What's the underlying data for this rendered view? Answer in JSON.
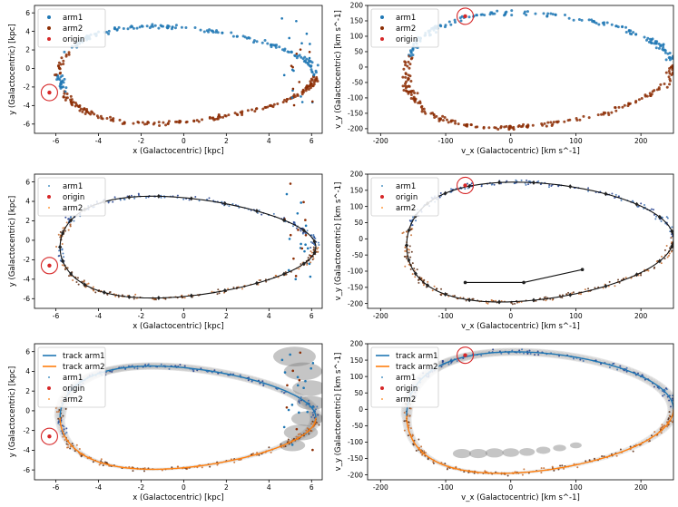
{
  "chart_data": [
    {
      "id": "p1",
      "type": "scatter",
      "xlabel": "x (Galactocentric) [kpc]",
      "ylabel": "y (Galactocentric) [kpc]",
      "xlim": [
        -7,
        6.5
      ],
      "ylim": [
        -7,
        6.8
      ],
      "xticks": [
        "-6",
        "-4",
        "-2",
        "0",
        "2",
        "4",
        "6"
      ],
      "yticks": [
        "-6",
        "-4",
        "-2",
        "0",
        "2",
        "4",
        "6"
      ],
      "legend": [
        {
          "label": "arm1",
          "kind": "dot",
          "color": "#1f77b4"
        },
        {
          "label": "arm2",
          "kind": "dot",
          "color": "#8c2d04"
        },
        {
          "label": "origin",
          "kind": "dot",
          "color": "#d62728"
        }
      ],
      "legend_loc": "upper-left",
      "orbit": "pos",
      "origin": [
        -6.3,
        -2.6
      ],
      "origin_circle": true,
      "mode": "scatter"
    },
    {
      "id": "p2",
      "type": "scatter",
      "xlabel": "v_x (Galactocentric) [km s^-1]",
      "ylabel": "v_y (Galactocentric) [km s^-1]",
      "xlim": [
        -220,
        250
      ],
      "ylim": [
        -215,
        200
      ],
      "xticks": [
        "-200",
        "-100",
        "0",
        "100",
        "200"
      ],
      "yticks": [
        "-200",
        "-150",
        "-100",
        "-50",
        "0",
        "50",
        "100",
        "150",
        "200"
      ],
      "legend": [
        {
          "label": "arm1",
          "kind": "dot",
          "color": "#1f77b4"
        },
        {
          "label": "arm2",
          "kind": "dot",
          "color": "#8c2d04"
        },
        {
          "label": "origin",
          "kind": "dot",
          "color": "#d62728"
        }
      ],
      "legend_loc": "upper-left",
      "orbit": "vel",
      "origin": [
        -70,
        165
      ],
      "origin_circle": true,
      "mode": "scatter"
    },
    {
      "id": "p3",
      "type": "scatter",
      "xlabel": "x (Galactocentric) [kpc]",
      "ylabel": "y (Galactocentric) [kpc]",
      "xlim": [
        -7,
        6.5
      ],
      "ylim": [
        -7,
        6.8
      ],
      "xticks": [
        "-6",
        "-4",
        "-2",
        "0",
        "2",
        "4",
        "6"
      ],
      "yticks": [
        "-6",
        "-4",
        "-2",
        "0",
        "2",
        "4",
        "6"
      ],
      "legend": [
        {
          "label": "arm1",
          "kind": "tiny",
          "color": "#1f77b4"
        },
        {
          "label": "origin",
          "kind": "dot",
          "color": "#d62728"
        },
        {
          "label": "arm2",
          "kind": "tiny",
          "color": "#ff7f0e"
        }
      ],
      "legend_loc": "upper-left",
      "orbit": "pos",
      "origin": [
        -6.3,
        -2.6
      ],
      "origin_circle": true,
      "mode": "track"
    },
    {
      "id": "p4",
      "type": "scatter",
      "xlabel": "v_x (Galactocentric) [km s^-1]",
      "ylabel": "v_y (Galactocentric) [km s^-1]",
      "xlim": [
        -220,
        250
      ],
      "ylim": [
        -215,
        200
      ],
      "xticks": [
        "-200",
        "-100",
        "0",
        "100",
        "200"
      ],
      "yticks": [
        "-200",
        "-150",
        "-100",
        "-50",
        "0",
        "50",
        "100",
        "150",
        "200"
      ],
      "legend": [
        {
          "label": "arm1",
          "kind": "tiny",
          "color": "#1f77b4"
        },
        {
          "label": "origin",
          "kind": "dot",
          "color": "#d62728"
        },
        {
          "label": "arm2",
          "kind": "tiny",
          "color": "#ff7f0e"
        }
      ],
      "legend_loc": "upper-left",
      "orbit": "vel",
      "origin": [
        -70,
        165
      ],
      "origin_circle": true,
      "mode": "track",
      "extra_segment": [
        [
          -70,
          -135
        ],
        [
          20,
          -135
        ],
        [
          110,
          -95
        ]
      ]
    },
    {
      "id": "p5",
      "type": "line",
      "xlabel": "x (Galactocentric) [kpc]",
      "ylabel": "y (Galactocentric) [kpc]",
      "xlim": [
        -7,
        6.5
      ],
      "ylim": [
        -7,
        6.8
      ],
      "xticks": [
        "-6",
        "-4",
        "-2",
        "0",
        "2",
        "4",
        "6"
      ],
      "yticks": [
        "-6",
        "-4",
        "-2",
        "0",
        "2",
        "4",
        "6"
      ],
      "legend": [
        {
          "label": "track arm1",
          "kind": "line",
          "color": "#1f77b4"
        },
        {
          "label": "track arm2",
          "kind": "line",
          "color": "#ff7f0e"
        },
        {
          "label": "arm1",
          "kind": "tiny",
          "color": "#1f77b4"
        },
        {
          "label": "origin",
          "kind": "dot",
          "color": "#d62728"
        },
        {
          "label": "arm2",
          "kind": "tiny",
          "color": "#ff7f0e"
        }
      ],
      "legend_loc": "upper-left",
      "orbit": "pos",
      "origin": [
        -6.3,
        -2.6
      ],
      "origin_circle": true,
      "mode": "band",
      "big_blobs": [
        [
          5.2,
          5.5,
          1.0
        ],
        [
          5.6,
          4.0,
          0.9
        ],
        [
          5.9,
          2.3,
          0.8
        ],
        [
          6.0,
          0.8,
          0.7
        ],
        [
          5.8,
          -0.8,
          0.75
        ],
        [
          5.5,
          -2.2,
          0.8
        ],
        [
          5.1,
          -3.5,
          0.6
        ]
      ]
    },
    {
      "id": "p6",
      "type": "line",
      "xlabel": "v_x (Galactocentric) [km s^-1]",
      "ylabel": "v_y (Galactocentric) [km s^-1]",
      "xlim": [
        -220,
        250
      ],
      "ylim": [
        -215,
        200
      ],
      "xticks": [
        "-200",
        "-100",
        "0",
        "100",
        "200"
      ],
      "yticks": [
        "-200",
        "-150",
        "-100",
        "-50",
        "0",
        "50",
        "100",
        "150",
        "200"
      ],
      "legend": [
        {
          "label": "track arm1",
          "kind": "line",
          "color": "#1f77b4"
        },
        {
          "label": "track arm2",
          "kind": "line",
          "color": "#ff7f0e"
        },
        {
          "label": "arm1",
          "kind": "tiny",
          "color": "#1f77b4"
        },
        {
          "label": "origin",
          "kind": "dot",
          "color": "#d62728"
        },
        {
          "label": "arm2",
          "kind": "tiny",
          "color": "#ff7f0e"
        }
      ],
      "legend_loc": "upper-left",
      "orbit": "vel",
      "origin": [
        -70,
        165
      ],
      "origin_circle": true,
      "mode": "band",
      "big_blobs": [
        [
          -75,
          -135,
          14
        ],
        [
          -50,
          -135,
          14
        ],
        [
          -25,
          -133,
          14
        ],
        [
          0,
          -132,
          13
        ],
        [
          25,
          -130,
          12
        ],
        [
          50,
          -125,
          11
        ],
        [
          75,
          -118,
          10
        ],
        [
          100,
          -110,
          9
        ]
      ]
    }
  ]
}
